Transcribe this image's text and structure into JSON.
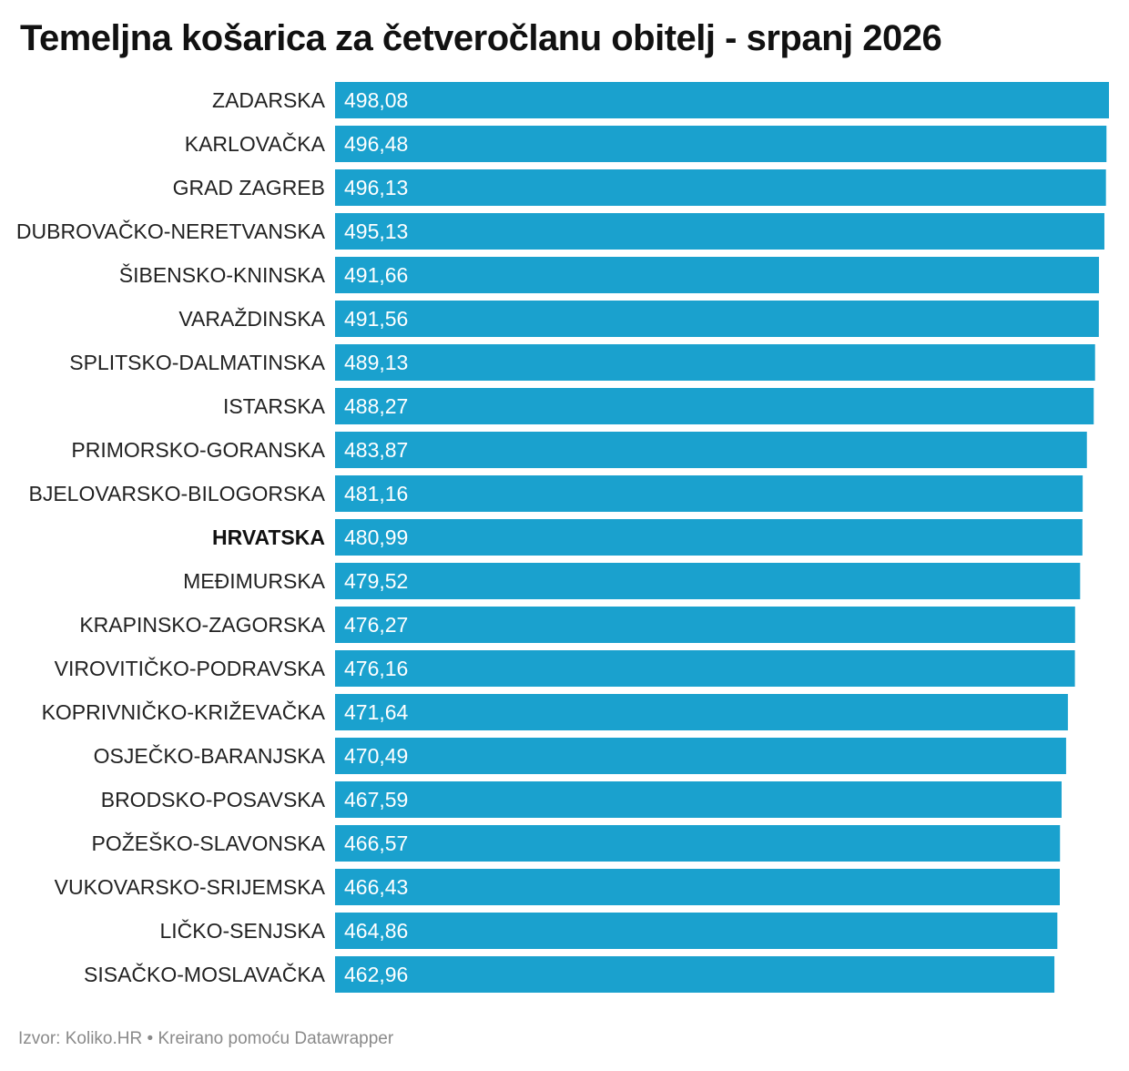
{
  "header": {
    "title": "Temeljna košarica za četveročlanu obitelj - srpanj 2026"
  },
  "footer": {
    "source_label": "Izvor:",
    "source": "Koliko.HR",
    "separator": "•",
    "credit": "Kreirano pomoću Datawrapper"
  },
  "colors": {
    "bar": "#1aa1ce",
    "value_text": "#ffffff",
    "label_text": "#222222",
    "footer_text": "#8a8a8a"
  },
  "chart_data": {
    "type": "bar",
    "orientation": "horizontal",
    "title": "Temeljna košarica za četveročlanu obitelj - srpanj 2026",
    "xlabel": "",
    "ylabel": "",
    "xlim": [
      0,
      498.08
    ],
    "grid": false,
    "legend": "none",
    "highlighted_category": "HRVATSKA",
    "categories": [
      "ZADARSKA",
      "KARLOVAČKA",
      "GRAD ZAGREB",
      "DUBROVAČKO-NERETVANSKA",
      "ŠIBENSKO-KNINSKA",
      "VARAŽDINSKA",
      "SPLITSKO-DALMATINSKA",
      "ISTARSKA",
      "PRIMORSKO-GORANSKA",
      "BJELOVARSKO-BILOGORSKA",
      "HRVATSKA",
      "MEĐIMURSKA",
      "KRAPINSKO-ZAGORSKA",
      "VIROVITIČKO-PODRAVSKA",
      "KOPRIVNIČKO-KRIŽEVAČKA",
      "OSJEČKO-BARANJSKA",
      "BRODSKO-POSAVSKA",
      "POŽEŠKO-SLAVONSKA",
      "VUKOVARSKO-SRIJEMSKA",
      "LIČKO-SENJSKA",
      "SISAČKO-MOSLAVAČKA"
    ],
    "values": [
      498.08,
      496.48,
      496.13,
      495.13,
      491.66,
      491.56,
      489.13,
      488.27,
      483.87,
      481.16,
      480.99,
      479.52,
      476.27,
      476.16,
      471.64,
      470.49,
      467.59,
      466.57,
      466.43,
      464.86,
      462.96
    ],
    "value_labels": [
      "498,08",
      "496,48",
      "496,13",
      "495,13",
      "491,66",
      "491,56",
      "489,13",
      "488,27",
      "483,87",
      "481,16",
      "480,99",
      "479,52",
      "476,27",
      "476,16",
      "471,64",
      "470,49",
      "467,59",
      "466,57",
      "466,43",
      "464,86",
      "462,96"
    ]
  }
}
